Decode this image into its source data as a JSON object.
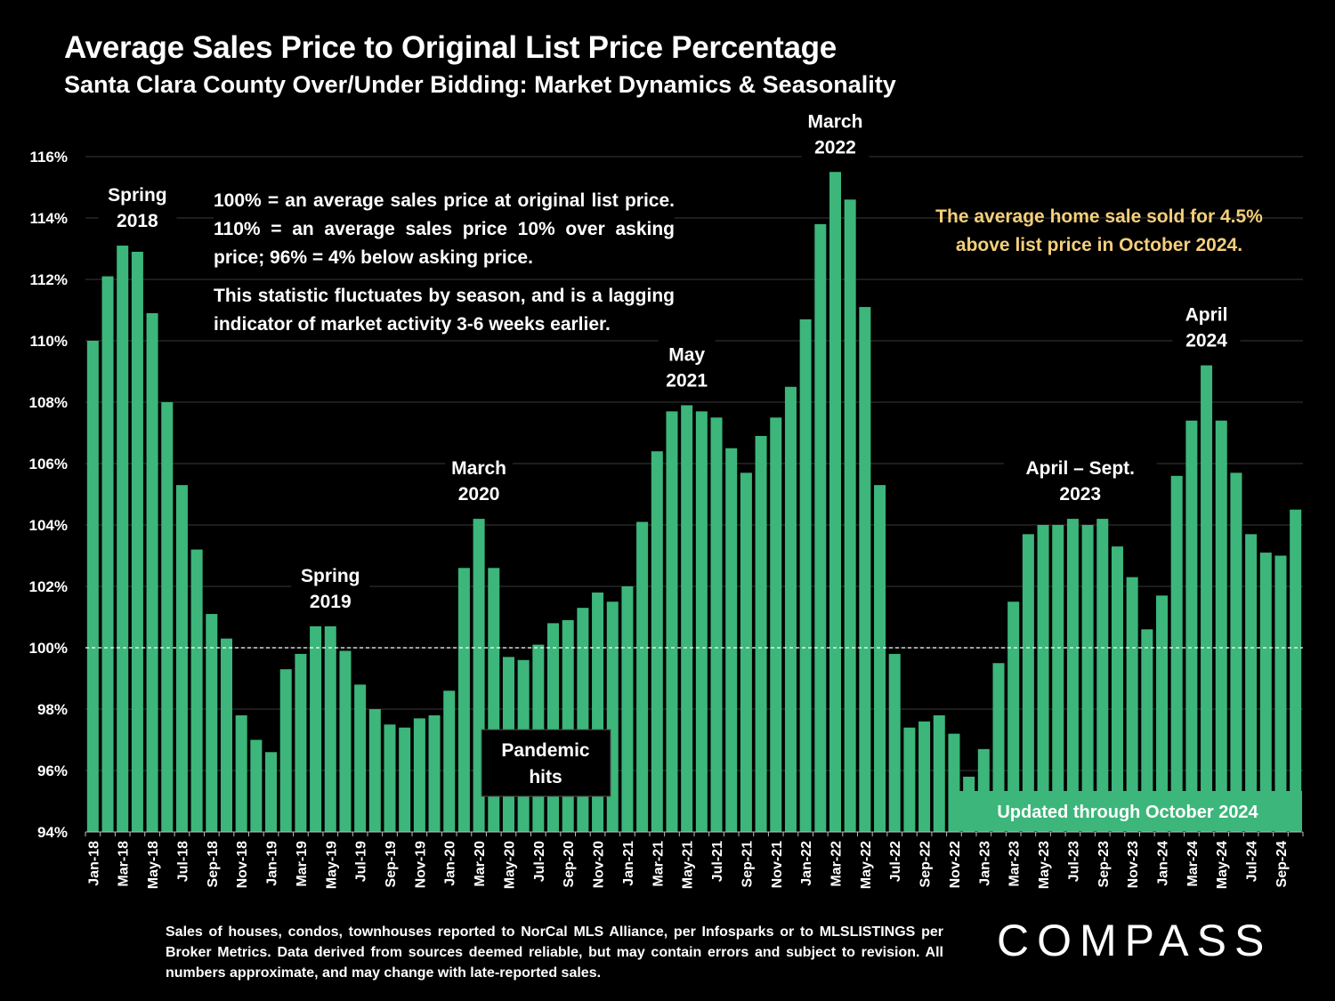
{
  "header": {
    "title": "Average Sales Price to Original List Price Percentage",
    "subtitle": "Santa Clara County Over/Under Bidding: Market Dynamics & Seasonality"
  },
  "notes": {
    "definition": "100% = an average sales price at original list price. 110% = an average sales price 10% over asking price; 96% = 4% below asking price.",
    "seasonality": "This statistic fluctuates by season, and is a lagging indicator of market activity 3-6 weeks earlier."
  },
  "callout": {
    "line1": "The average home sale sold for 4.5%",
    "line2": "above list price in October 2024."
  },
  "footer": {
    "source": "Sales of houses, condos, townhouses reported to NorCal MLS Alliance, per Infosparks or to MLSLISTINGS per Broker Metrics. Data derived from sources deemed reliable, but may contain errors and subject to revision. All numbers approximate, and may change with late-reported sales.",
    "logo": "COMPASS"
  },
  "chart_data": {
    "type": "bar",
    "bar_color": "#3cb67a",
    "ylim": [
      94,
      116
    ],
    "yticks": [
      94,
      96,
      98,
      100,
      102,
      104,
      106,
      108,
      110,
      112,
      114,
      116
    ],
    "ytick_suffix": "%",
    "reference_line": 100,
    "categories": [
      "Jan-18",
      "Feb-18",
      "Mar-18",
      "Apr-18",
      "May-18",
      "Jun-18",
      "Jul-18",
      "Aug-18",
      "Sep-18",
      "Oct-18",
      "Nov-18",
      "Dec-18",
      "Jan-19",
      "Feb-19",
      "Mar-19",
      "Apr-19",
      "May-19",
      "Jun-19",
      "Jul-19",
      "Aug-19",
      "Sep-19",
      "Oct-19",
      "Nov-19",
      "Dec-19",
      "Jan-20",
      "Feb-20",
      "Mar-20",
      "Apr-20",
      "May-20",
      "Jun-20",
      "Jul-20",
      "Aug-20",
      "Sep-20",
      "Oct-20",
      "Nov-20",
      "Dec-20",
      "Jan-21",
      "Feb-21",
      "Mar-21",
      "Apr-21",
      "May-21",
      "Jun-21",
      "Jul-21",
      "Aug-21",
      "Sep-21",
      "Oct-21",
      "Nov-21",
      "Dec-21",
      "Jan-22",
      "Feb-22",
      "Mar-22",
      "Apr-22",
      "May-22",
      "Jun-22",
      "Jul-22",
      "Aug-22",
      "Sep-22",
      "Oct-22",
      "Nov-22",
      "Dec-22",
      "Jan-23",
      "Feb-23",
      "Mar-23",
      "Apr-23",
      "May-23",
      "Jun-23",
      "Jul-23",
      "Aug-23",
      "Sep-23",
      "Oct-23",
      "Nov-23",
      "Dec-23",
      "Jan-24",
      "Feb-24",
      "Mar-24",
      "Apr-24",
      "May-24",
      "Jun-24",
      "Jul-24",
      "Aug-24",
      "Sep-24",
      "Oct-24"
    ],
    "tick_labels": [
      "Jan-18",
      "Mar-18",
      "May-18",
      "Jul-18",
      "Sep-18",
      "Nov-18",
      "Jan-19",
      "Mar-19",
      "May-19",
      "Jul-19",
      "Sep-19",
      "Nov-19",
      "Jan-20",
      "Mar-20",
      "May-20",
      "Jul-20",
      "Sep-20",
      "Nov-20",
      "Jan-21",
      "Mar-21",
      "May-21",
      "Jul-21",
      "Sep-21",
      "Nov-21",
      "Jan-22",
      "Mar-22",
      "May-22",
      "Jul-22",
      "Sep-22",
      "Nov-22",
      "Jan-23",
      "Mar-23",
      "May-23",
      "Jul-23",
      "Sep-23",
      "Nov-23",
      "Jan-24",
      "Mar-24",
      "May-24",
      "Jul-24",
      "Sep-24"
    ],
    "values": [
      110.0,
      112.1,
      113.1,
      112.9,
      110.9,
      108.0,
      105.3,
      103.2,
      101.1,
      100.3,
      97.8,
      97.0,
      96.6,
      99.3,
      99.8,
      100.7,
      100.7,
      99.9,
      98.8,
      98.0,
      97.5,
      97.4,
      97.7,
      97.8,
      98.6,
      102.6,
      104.2,
      102.6,
      99.7,
      99.6,
      100.1,
      100.8,
      100.9,
      101.3,
      101.8,
      101.5,
      102.0,
      104.1,
      106.4,
      107.7,
      107.9,
      107.7,
      107.5,
      106.5,
      105.7,
      106.9,
      107.5,
      108.5,
      110.7,
      113.8,
      115.5,
      114.6,
      111.1,
      105.3,
      99.8,
      97.4,
      97.6,
      97.8,
      97.2,
      95.8,
      96.7,
      99.5,
      101.5,
      103.7,
      104.0,
      104.0,
      104.2,
      104.0,
      104.2,
      103.3,
      102.3,
      100.6,
      101.7,
      105.6,
      107.4,
      109.2,
      107.4,
      105.7,
      103.7,
      103.1,
      103.0,
      104.5
    ],
    "annotations": [
      {
        "index": 3,
        "value": 113.1,
        "lines": [
          "Spring",
          "2018"
        ]
      },
      {
        "index": 16,
        "value": 100.7,
        "lines": [
          "Spring",
          "2019"
        ]
      },
      {
        "index": 26,
        "value": 104.2,
        "lines": [
          "March",
          "2020"
        ]
      },
      {
        "index": 40,
        "value": 107.9,
        "lines": [
          "May",
          "2021"
        ]
      },
      {
        "index": 50,
        "value": 115.5,
        "lines": [
          "March",
          "2022"
        ]
      },
      {
        "index": 66.5,
        "value": 104.2,
        "lines": [
          "April – Sept.",
          "2023"
        ]
      },
      {
        "index": 75,
        "value": 109.2,
        "lines": [
          "April",
          "2024"
        ]
      }
    ],
    "pandemic_label": [
      "Pandemic",
      "hits"
    ],
    "updated_label": "Updated through October 2024"
  }
}
